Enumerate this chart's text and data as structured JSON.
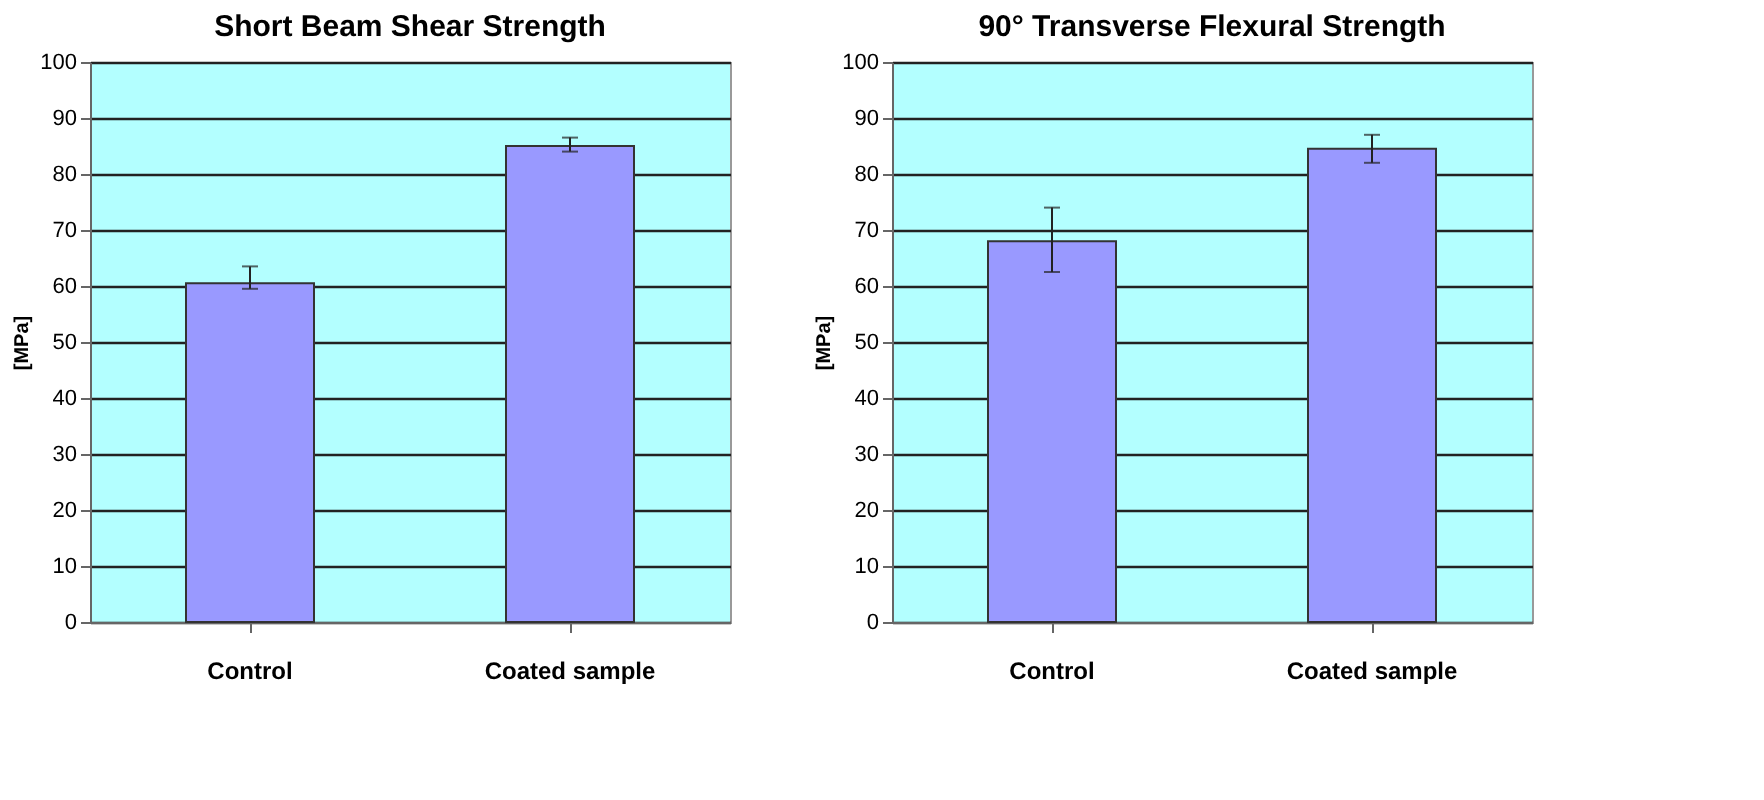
{
  "chart_data": [
    {
      "type": "bar",
      "title": "Short Beam Shear Strength",
      "ylabel": "[MPa]",
      "categories": [
        "Control",
        "Coated sample"
      ],
      "values": [
        60.5,
        85
      ],
      "errors": [
        [
          59.5,
          63.5
        ],
        [
          84,
          86.5
        ]
      ],
      "color": "#9999ff",
      "ylim": [
        0,
        100
      ],
      "yticks": [
        0,
        10,
        20,
        30,
        40,
        50,
        60,
        70,
        80,
        90,
        100
      ],
      "grid": "y"
    },
    {
      "type": "bar",
      "title": "90° Transverse Flexural Strength",
      "ylabel": "[MPa]",
      "categories": [
        "Control",
        "Coated sample"
      ],
      "values": [
        68,
        84.5
      ],
      "errors": [
        [
          62.5,
          74
        ],
        [
          82,
          87
        ]
      ],
      "color": "#9999ff",
      "ylim": [
        0,
        100
      ],
      "yticks": [
        0,
        10,
        20,
        30,
        40,
        50,
        60,
        70,
        80,
        90,
        100
      ],
      "grid": "y"
    }
  ]
}
